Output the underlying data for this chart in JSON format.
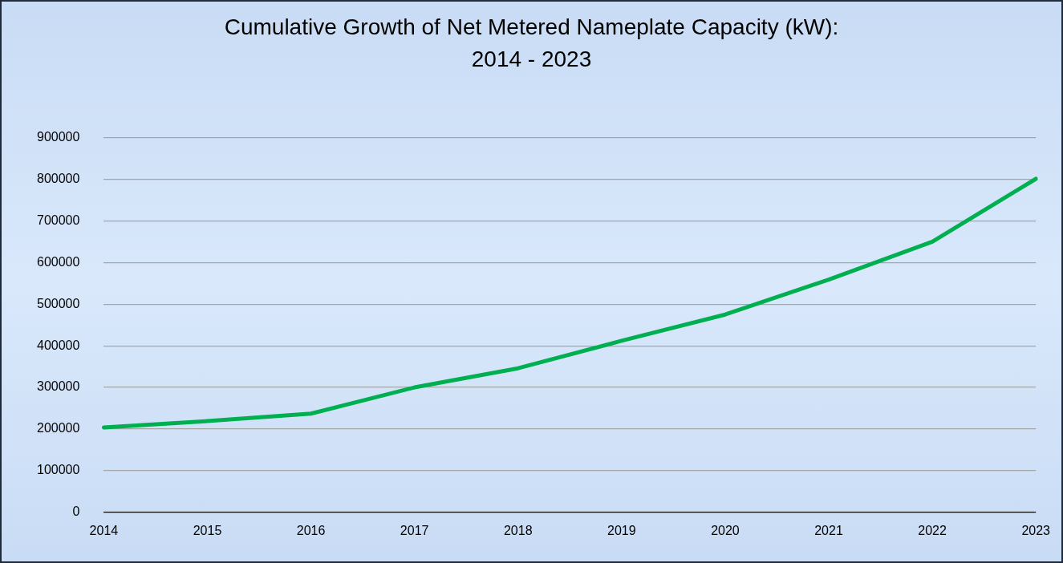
{
  "chart_data": {
    "type": "line",
    "title": "Cumulative Growth of Net Metered Nameplate Capacity (kW):\n2014 - 2023",
    "categories": [
      "2014",
      "2015",
      "2016",
      "2017",
      "2018",
      "2019",
      "2020",
      "2021",
      "2022",
      "2023"
    ],
    "series": [
      {
        "color": "#00b050",
        "values": [
          204000,
          219000,
          237000,
          300000,
          346000,
          412000,
          475000,
          559000,
          650000,
          801000
        ]
      }
    ],
    "ylim": [
      0,
      900000
    ],
    "yticks": [
      0,
      100000,
      200000,
      300000,
      400000,
      500000,
      600000,
      700000,
      800000,
      900000
    ],
    "grid": "y",
    "legend": false,
    "marker": "none",
    "line_style": "solid"
  }
}
